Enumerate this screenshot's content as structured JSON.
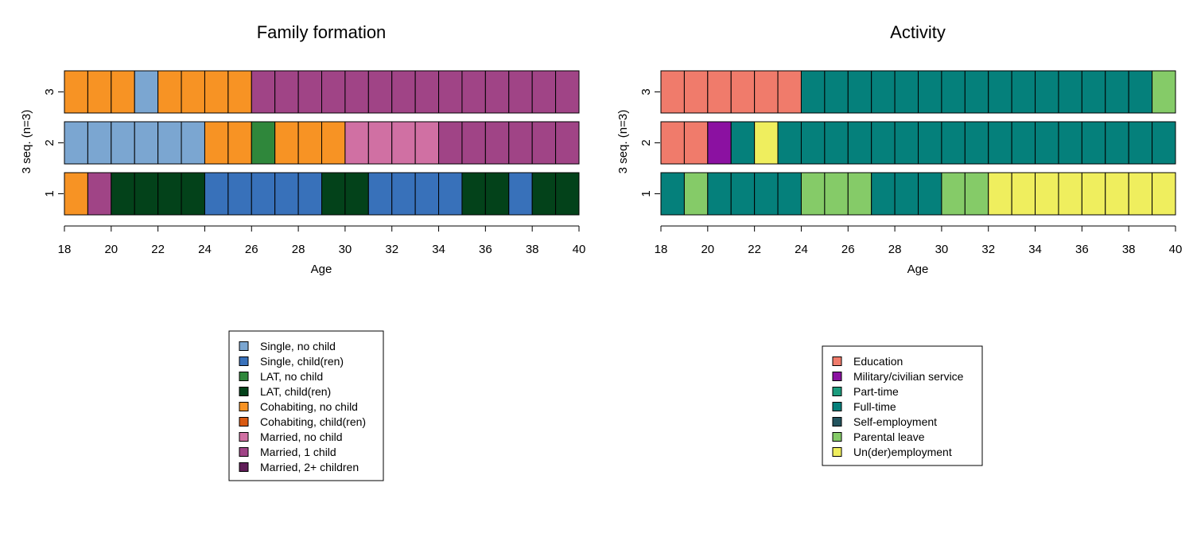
{
  "chart_data": [
    {
      "type": "sequence-index-plot",
      "title": "Family formation",
      "xlabel": "Age",
      "ylabel": "3 seq. (n=3)",
      "xlim": [
        18,
        40
      ],
      "x_ticks": [
        "18",
        "20",
        "22",
        "24",
        "26",
        "28",
        "30",
        "32",
        "34",
        "36",
        "38",
        "40"
      ],
      "states": [
        {
          "name": "Single, no child",
          "color": "#7BA6D1"
        },
        {
          "name": "Single, child(ren)",
          "color": "#3871BA"
        },
        {
          "name": "LAT, no child",
          "color": "#2F873B"
        },
        {
          "name": "LAT, child(ren)",
          "color": "#03421A"
        },
        {
          "name": "Cohabiting, no child",
          "color": "#F79324"
        },
        {
          "name": "Cohabiting, child(ren)",
          "color": "#D95A12"
        },
        {
          "name": "Married, no child",
          "color": "#D070A3"
        },
        {
          "name": "Married, 1 child",
          "color": "#A04486"
        },
        {
          "name": "Married, 2+ children",
          "color": "#601D58"
        }
      ],
      "sequences": [
        {
          "label": "3",
          "states": [
            4,
            4,
            4,
            0,
            4,
            4,
            4,
            4,
            7,
            7,
            7,
            7,
            7,
            7,
            7,
            7,
            7,
            7,
            7,
            7,
            7,
            7
          ]
        },
        {
          "label": "2",
          "states": [
            0,
            0,
            0,
            0,
            0,
            0,
            4,
            4,
            2,
            4,
            4,
            4,
            6,
            6,
            6,
            6,
            7,
            7,
            7,
            7,
            7,
            7
          ]
        },
        {
          "label": "1",
          "states": [
            4,
            7,
            3,
            3,
            3,
            3,
            1,
            1,
            1,
            1,
            1,
            3,
            3,
            1,
            1,
            1,
            1,
            3,
            3,
            1,
            3,
            3
          ]
        }
      ]
    },
    {
      "type": "sequence-index-plot",
      "title": "Activity",
      "xlabel": "Age",
      "ylabel": "3 seq. (n=3)",
      "xlim": [
        18,
        40
      ],
      "x_ticks": [
        "18",
        "20",
        "22",
        "24",
        "26",
        "28",
        "30",
        "32",
        "34",
        "36",
        "38",
        "40"
      ],
      "states": [
        {
          "name": "Education",
          "color": "#F07B6B"
        },
        {
          "name": "Military/civilian service",
          "color": "#8B11A1"
        },
        {
          "name": "Part-time",
          "color": "#1B9C7D"
        },
        {
          "name": "Full-time",
          "color": "#05807B"
        },
        {
          "name": "Self-employment",
          "color": "#23545E"
        },
        {
          "name": "Parental leave",
          "color": "#85CB68"
        },
        {
          "name": "Un(der)employment",
          "color": "#EFEE5E"
        }
      ],
      "sequences": [
        {
          "label": "3",
          "states": [
            0,
            0,
            0,
            0,
            0,
            0,
            3,
            3,
            3,
            3,
            3,
            3,
            3,
            3,
            3,
            3,
            3,
            3,
            3,
            3,
            3,
            5
          ]
        },
        {
          "label": "2",
          "states": [
            0,
            0,
            1,
            3,
            6,
            3,
            3,
            3,
            3,
            3,
            3,
            3,
            3,
            3,
            3,
            3,
            3,
            3,
            3,
            3,
            3,
            3
          ]
        },
        {
          "label": "1",
          "states": [
            3,
            5,
            3,
            3,
            3,
            3,
            5,
            5,
            5,
            3,
            3,
            3,
            5,
            5,
            6,
            6,
            6,
            6,
            6,
            6,
            6,
            6
          ]
        }
      ]
    }
  ]
}
